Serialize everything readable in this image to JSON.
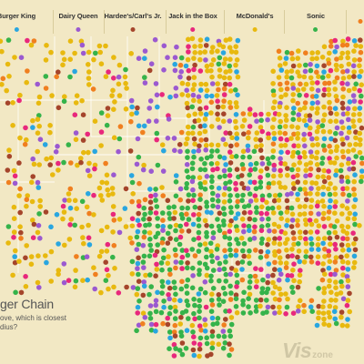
{
  "legend": {
    "items": [
      {
        "label": "Burger King",
        "color": "#29a6e0",
        "id": "burger-king"
      },
      {
        "label": "Dairy Queen",
        "color": "#9b59d0",
        "id": "dairy-queen"
      },
      {
        "label": "Hardee's/Carl's Jr.",
        "color": "#a5452b",
        "id": "hardees-carls-jr"
      },
      {
        "label": "Jack in the Box",
        "color": "#e8287c",
        "id": "jack-in-the-box"
      },
      {
        "label": "McDonald's",
        "color": "#e8b90f",
        "id": "mcdonalds"
      },
      {
        "label": "Sonic",
        "color": "#35b34a",
        "id": "sonic"
      },
      {
        "label": "",
        "color": "#f07f1f",
        "id": "cut-off-chain"
      }
    ]
  },
  "caption": {
    "title": "ger Chain",
    "text": "ove, which is closest dius?"
  },
  "watermark": {
    "main": "Vis",
    "sub": "zone"
  },
  "map_style": {
    "land_color": "#f2e8c4",
    "border_color": "#ffffff",
    "regions": [
      {
        "name": "west",
        "dominant": "#e8b90f",
        "density": 0.33
      },
      {
        "name": "northern-plains",
        "dominant": "#9b59d0",
        "density": 0.32
      },
      {
        "name": "southern-plains",
        "dominant": "#35b34a",
        "density": 0.9
      },
      {
        "name": "midwest",
        "dominant": "#e8b90f",
        "density": 0.9
      },
      {
        "name": "south",
        "dominant": "#35b34a",
        "density": 0.88
      },
      {
        "name": "east",
        "dominant": "#e8b90f",
        "density": 0.96
      }
    ]
  }
}
